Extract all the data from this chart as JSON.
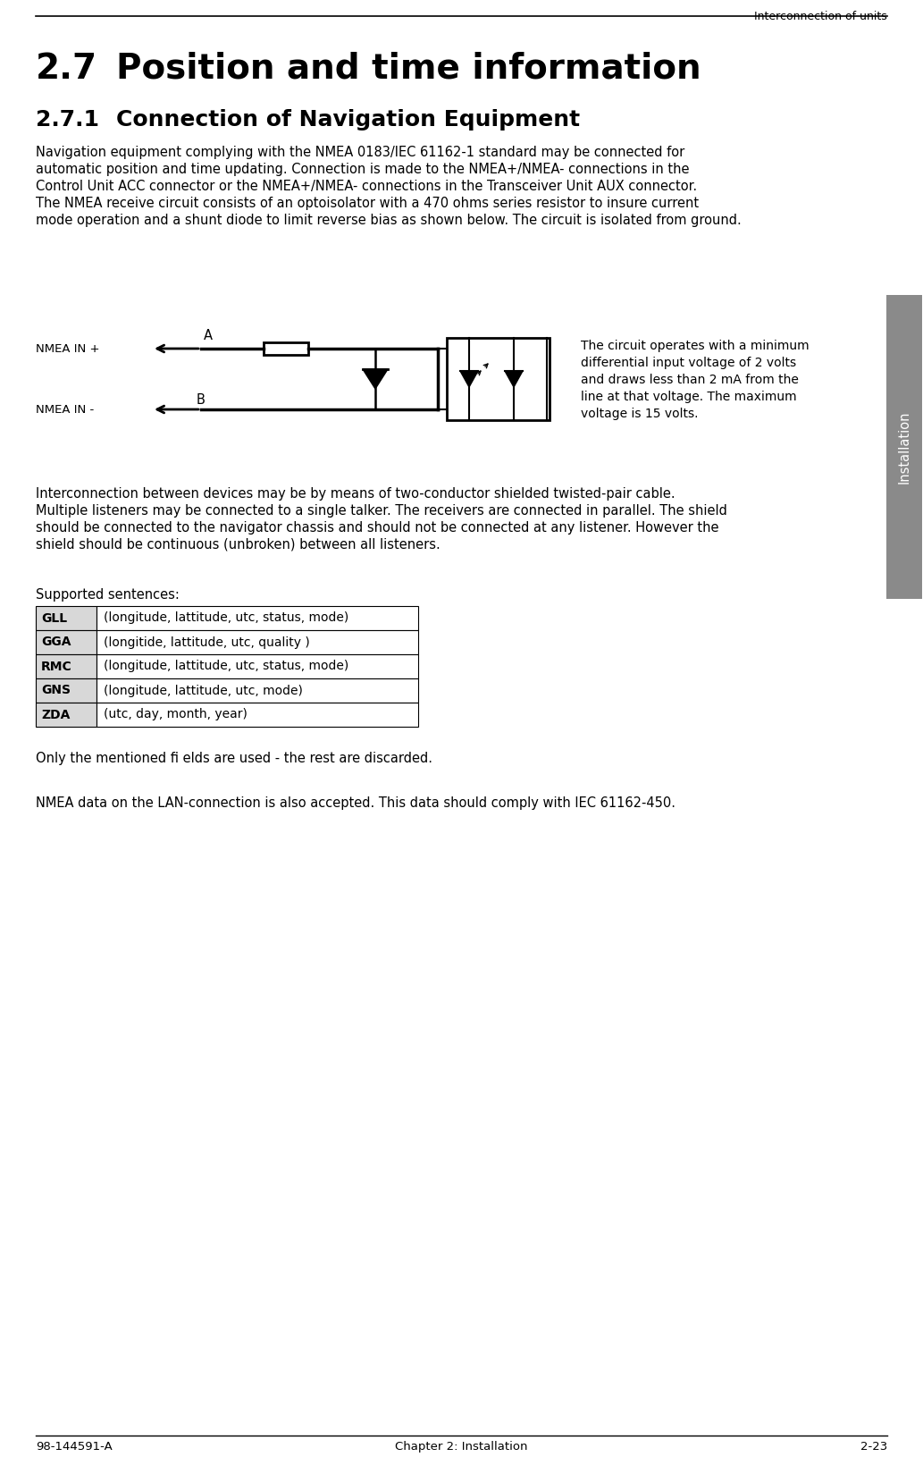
{
  "page_title": "Interconnection of units",
  "section_num": "2.7",
  "section_title": "Position and time information",
  "subsection_num": "2.7.1",
  "subsection_title": "Connection of Navigation Equipment",
  "body_text_1_lines": [
    "Navigation equipment complying with the NMEA 0183/IEC 61162-1 standard may be connected for",
    "automatic position and time updating. Connection is made to the NMEA+/NMEA- connections in the",
    "Control Unit ACC connector or the NMEA+/NMEA- connections in the Transceiver Unit AUX connector.",
    "The NMEA receive circuit consists of an optoisolator with a 470 ohms series resistor to insure current",
    "mode operation and a shunt diode to limit reverse bias as shown below. The circuit is isolated from ground."
  ],
  "circuit_caption_lines": [
    "The circuit operates with a minimum",
    "differential input voltage of 2 volts",
    "and draws less than 2 mA from the",
    "line at that voltage. The maximum",
    "voltage is 15 volts."
  ],
  "body_text_2_lines": [
    "Interconnection between devices may be by means of two-conductor shielded twisted-pair cable.",
    "Multiple listeners may be connected to a single talker. The receivers are connected in parallel. The shield",
    "should be connected to the navigator chassis and should not be connected at any listener. However the",
    "shield should be continuous (unbroken) between all listeners."
  ],
  "supported_label": "Supported sentences:",
  "table_rows": [
    [
      "GLL",
      "(longitude, lattitude, utc, status, mode)"
    ],
    [
      "GGA",
      "(longitide, lattitude, utc, quality )"
    ],
    [
      "RMC",
      "(longitude, lattitude, utc, status, mode)"
    ],
    [
      "GNS",
      "(longitude, lattitude, utc, mode)"
    ],
    [
      "ZDA",
      "(utc, day, month, year)"
    ]
  ],
  "footer_text_1": "Only the mentioned ﬁ elds are used - the rest are discarded.",
  "footer_text_2": "NMEA data on the LAN-connection is also accepted. This data should comply with IEC 61162-450.",
  "sidebar_text": "Installation",
  "footer_left": "98-144591-A",
  "footer_center": "Chapter 2: Installation",
  "footer_right": "2-23",
  "bg_color": "#ffffff",
  "sidebar_color": "#8a8a8a"
}
